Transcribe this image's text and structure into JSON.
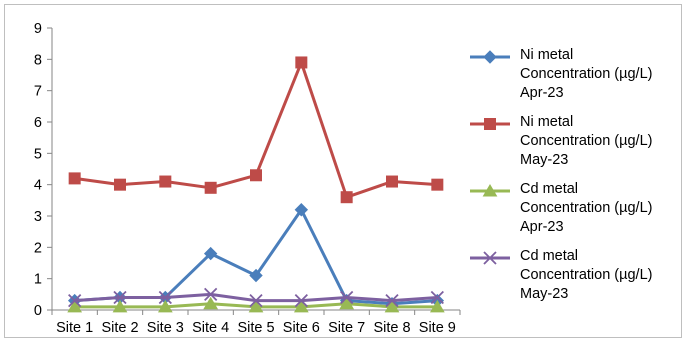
{
  "chart_data": {
    "type": "line",
    "categories": [
      "Site 1",
      "Site 2",
      "Site 3",
      "Site 4",
      "Site 5",
      "Site 6",
      "Site 7",
      "Site 8",
      "Site 9"
    ],
    "ylim": [
      0,
      9
    ],
    "yticks": [
      0,
      1,
      2,
      3,
      4,
      5,
      6,
      7,
      8,
      9
    ],
    "grid": false,
    "legend_position": "right",
    "title": "",
    "xlabel": "",
    "ylabel": "",
    "series": [
      {
        "name": "Ni metal Concentration  (µg/L) Apr-23",
        "color": "#4a7ebb",
        "marker": "diamond",
        "values": [
          0.3,
          0.4,
          0.4,
          1.8,
          1.1,
          3.2,
          0.3,
          0.2,
          0.3
        ]
      },
      {
        "name": "Ni metal Concentration  (µg/L) May-23",
        "color": "#be4b48",
        "marker": "square",
        "values": [
          4.2,
          4.0,
          4.1,
          3.9,
          4.3,
          7.9,
          3.6,
          4.1,
          4.0
        ]
      },
      {
        "name": "Cd metal Concentration (µg/L) Apr-23",
        "color": "#98b954",
        "marker": "triangle",
        "values": [
          0.1,
          0.1,
          0.1,
          0.2,
          0.1,
          0.1,
          0.2,
          0.1,
          0.1
        ]
      },
      {
        "name": "Cd metal Concentration (µg/L) May-23",
        "color": "#7d60a0",
        "marker": "x",
        "values": [
          0.3,
          0.4,
          0.4,
          0.5,
          0.3,
          0.3,
          0.4,
          0.3,
          0.4
        ]
      }
    ]
  },
  "legend": {
    "items": [
      {
        "text": "Ni metal\nConcentration  (µg/L)\nApr-23"
      },
      {
        "text": "Ni metal\nConcentration  (µg/L)\nMay-23"
      },
      {
        "text": "Cd metal\nConcentration (µg/L)\nApr-23"
      },
      {
        "text": "Cd metal\nConcentration (µg/L)\nMay-23"
      }
    ]
  }
}
